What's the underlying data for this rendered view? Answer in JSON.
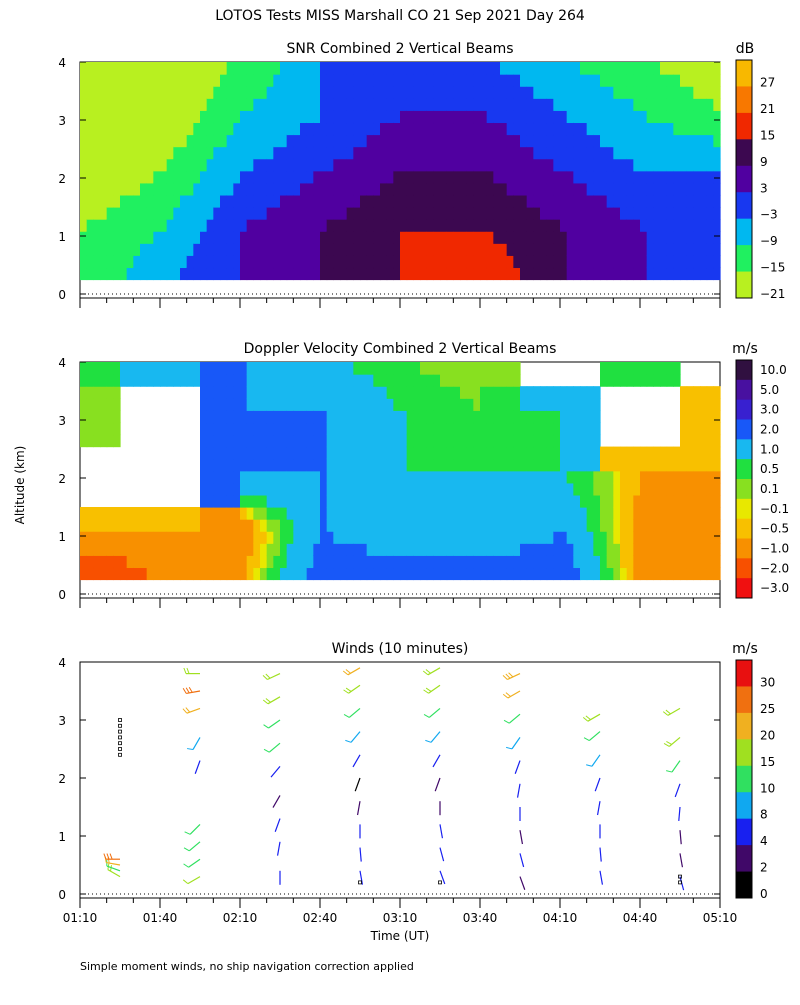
{
  "figure": {
    "title": "LOTOS Tests MISS Marshall CO  21 Sep 2021 Day 264",
    "y_axis_label": "Altitude (km)",
    "x_axis_label": "Time (UT)",
    "footnote": "Simple moment winds, no ship navigation correction applied"
  },
  "chart_data": [
    {
      "type": "heatmap",
      "title": "SNR Combined 2 Vertical Beams",
      "units": "dB",
      "x_ticks": [],
      "y_ticks": [
        "0",
        "1",
        "2",
        "3",
        "4"
      ],
      "ylim": [
        0,
        4
      ],
      "colorbar": {
        "labels": [
          "27",
          "21",
          "15",
          "9",
          "3",
          "−3",
          "−9",
          "−15",
          "−21"
        ],
        "colors": [
          "#f8b800",
          "#f87800",
          "#f02800",
          "#3c0850",
          "#5000a0",
          "#1838f0",
          "#00b8f0",
          "#20f060",
          "#b8f020"
        ]
      },
      "time_layers": [
        {
          "t": "01:10",
          "snr_levels_0_to_4km": [
            -15,
            -15,
            -21,
            -21,
            -21
          ]
        },
        {
          "t": "01:40",
          "snr_levels_0_to_4km": [
            -3,
            -9,
            -15,
            -21,
            -21
          ]
        },
        {
          "t": "02:10",
          "snr_levels_0_to_4km": [
            3,
            3,
            -3,
            -9,
            -15
          ]
        },
        {
          "t": "02:40",
          "snr_levels_0_to_4km": [
            9,
            9,
            3,
            -3,
            -3
          ]
        },
        {
          "t": "03:10",
          "snr_levels_0_to_4km": [
            15,
            15,
            9,
            3,
            -3
          ]
        },
        {
          "t": "03:40",
          "snr_levels_0_to_4km": [
            21,
            15,
            9,
            3,
            -3
          ]
        },
        {
          "t": "04:10",
          "snr_levels_0_to_4km": [
            9,
            9,
            3,
            -3,
            -9
          ]
        },
        {
          "t": "04:40",
          "snr_levels_0_to_4km": [
            3,
            3,
            -3,
            -9,
            -15
          ]
        },
        {
          "t": "05:10",
          "snr_levels_0_to_4km": [
            -3,
            -3,
            -3,
            -15,
            -21
          ]
        }
      ]
    },
    {
      "type": "heatmap",
      "title": "Doppler Velocity Combined 2 Vertical Beams",
      "units": "m/s",
      "x_ticks": [],
      "y_ticks": [
        "0",
        "1",
        "2",
        "3",
        "4"
      ],
      "ylim": [
        0,
        4
      ],
      "colorbar": {
        "labels": [
          "10.0",
          "5.0",
          "3.0",
          "2.0",
          "1.0",
          "0.5",
          "0.1",
          "−0.1",
          "−0.5",
          "−1.0",
          "−2.0",
          "−3.0"
        ],
        "colors": [
          "#301040",
          "#4810a0",
          "#3820d0",
          "#1858f8",
          "#18b8f0",
          "#20e040",
          "#88e020",
          "#e8e800",
          "#f8c000",
          "#f89000",
          "#f85000",
          "#f01010"
        ]
      },
      "time_layers": [
        {
          "t": "01:10",
          "velocity_levels_0_to_4km": [
            -2.0,
            -0.5,
            null,
            0.1,
            0.5
          ]
        },
        {
          "t": "01:40",
          "velocity_levels_0_to_4km": [
            -1.0,
            -0.5,
            null,
            null,
            1.0
          ]
        },
        {
          "t": "02:10",
          "velocity_levels_0_to_4km": [
            -0.5,
            -1.0,
            2.0,
            2.0,
            2.0
          ]
        },
        {
          "t": "02:40",
          "velocity_levels_0_to_4km": [
            3.0,
            2.0,
            2.0,
            2.0,
            1.0
          ]
        },
        {
          "t": "03:10",
          "velocity_levels_0_to_4km": [
            3.0,
            1.0,
            1.0,
            1.0,
            0.5
          ]
        },
        {
          "t": "03:40",
          "velocity_levels_0_to_4km": [
            3.0,
            1.0,
            1.0,
            0.5,
            0.1
          ]
        },
        {
          "t": "04:10",
          "velocity_levels_0_to_4km": [
            3.0,
            2.0,
            1.0,
            1.0,
            null
          ]
        },
        {
          "t": "04:40",
          "velocity_levels_0_to_4km": [
            -1.0,
            -1.0,
            -0.5,
            null,
            0.5
          ]
        },
        {
          "t": "05:10",
          "velocity_levels_0_to_4km": [
            -1.0,
            -1.0,
            -0.5,
            -0.5,
            null
          ]
        }
      ]
    },
    {
      "type": "scatter",
      "title": "Winds (10 minutes)",
      "units": "m/s",
      "x_ticks": [
        "01:10",
        "01:40",
        "02:10",
        "02:40",
        "03:10",
        "03:40",
        "04:10",
        "04:40",
        "05:10"
      ],
      "y_ticks": [
        "0",
        "1",
        "2",
        "3",
        "4"
      ],
      "xlim": [
        "01:10",
        "05:10"
      ],
      "ylim": [
        0,
        4
      ],
      "colorbar": {
        "labels": [
          "30",
          "25",
          "20",
          "15",
          "10",
          "8",
          "4",
          "2",
          "0"
        ],
        "colors": [
          "#e81010",
          "#f07010",
          "#f0b020",
          "#a0e020",
          "#30e060",
          "#10a8f0",
          "#1820f0",
          "#400868",
          "#000000"
        ]
      },
      "profiles": [
        {
          "t": "01:25",
          "heights": [
            0.3,
            0.4,
            0.5,
            0.6
          ],
          "speeds": [
            18,
            12,
            22,
            25
          ],
          "dirs": [
            300,
            290,
            280,
            270
          ]
        },
        {
          "t": "01:55",
          "heights": [
            0.3,
            0.6,
            0.9,
            1.2,
            2.3,
            2.7,
            3.2,
            3.5,
            3.8
          ],
          "speeds": [
            15,
            14,
            13,
            10,
            4,
            8,
            22,
            25,
            18
          ],
          "dirs": [
            240,
            235,
            230,
            225,
            200,
            210,
            250,
            260,
            270
          ]
        },
        {
          "t": "02:25",
          "heights": [
            0.4,
            0.9,
            1.3,
            1.7,
            2.2,
            2.6,
            3.0,
            3.4,
            3.8
          ],
          "speeds": [
            6,
            4,
            5,
            3,
            4,
            10,
            14,
            18,
            18
          ],
          "dirs": [
            180,
            190,
            200,
            210,
            220,
            230,
            235,
            240,
            245
          ]
        },
        {
          "t": "02:55",
          "heights": [
            0.4,
            0.8,
            1.2,
            1.6,
            2.0,
            2.4,
            2.8,
            3.2,
            3.6,
            3.9
          ],
          "speeds": [
            4,
            4,
            4,
            3,
            1,
            4,
            8,
            14,
            18,
            20
          ],
          "dirs": [
            170,
            175,
            180,
            190,
            200,
            210,
            220,
            230,
            235,
            240
          ]
        },
        {
          "t": "03:25",
          "heights": [
            0.4,
            0.8,
            1.2,
            1.6,
            2.0,
            2.4,
            2.8,
            3.2,
            3.6,
            3.9
          ],
          "speeds": [
            4,
            4,
            4,
            3,
            3,
            4,
            8,
            12,
            16,
            18
          ],
          "dirs": [
            160,
            165,
            170,
            180,
            200,
            210,
            220,
            230,
            235,
            240
          ]
        },
        {
          "t": "03:55",
          "heights": [
            0.3,
            0.7,
            1.1,
            1.5,
            1.9,
            2.3,
            2.7,
            3.1,
            3.5,
            3.8
          ],
          "speeds": [
            2,
            4,
            3,
            4,
            4,
            4,
            8,
            14,
            20,
            24
          ],
          "dirs": [
            160,
            165,
            170,
            180,
            190,
            200,
            215,
            230,
            240,
            245
          ]
        },
        {
          "t": "04:25",
          "heights": [
            0.4,
            0.8,
            1.2,
            1.6,
            2.0,
            2.4,
            2.8,
            3.1
          ],
          "speeds": [
            4,
            4,
            4,
            4,
            4,
            8,
            12,
            16
          ],
          "dirs": [
            170,
            175,
            180,
            190,
            200,
            215,
            230,
            240
          ]
        },
        {
          "t": "04:55",
          "heights": [
            0.3,
            0.7,
            1.1,
            1.5,
            1.9,
            2.3,
            2.7,
            3.2
          ],
          "speeds": [
            4,
            3,
            3,
            4,
            6,
            12,
            18,
            16
          ],
          "dirs": [
            165,
            170,
            175,
            185,
            200,
            215,
            230,
            240
          ]
        }
      ],
      "missing_markers": [
        {
          "t": "01:25",
          "heights": [
            2.4,
            2.5,
            2.6,
            2.7,
            2.8,
            2.9,
            3.0
          ]
        },
        {
          "t": "02:55",
          "heights": [
            0.2
          ]
        },
        {
          "t": "03:25",
          "heights": [
            0.2
          ]
        },
        {
          "t": "04:55",
          "heights": [
            0.2,
            0.3
          ]
        }
      ]
    }
  ]
}
